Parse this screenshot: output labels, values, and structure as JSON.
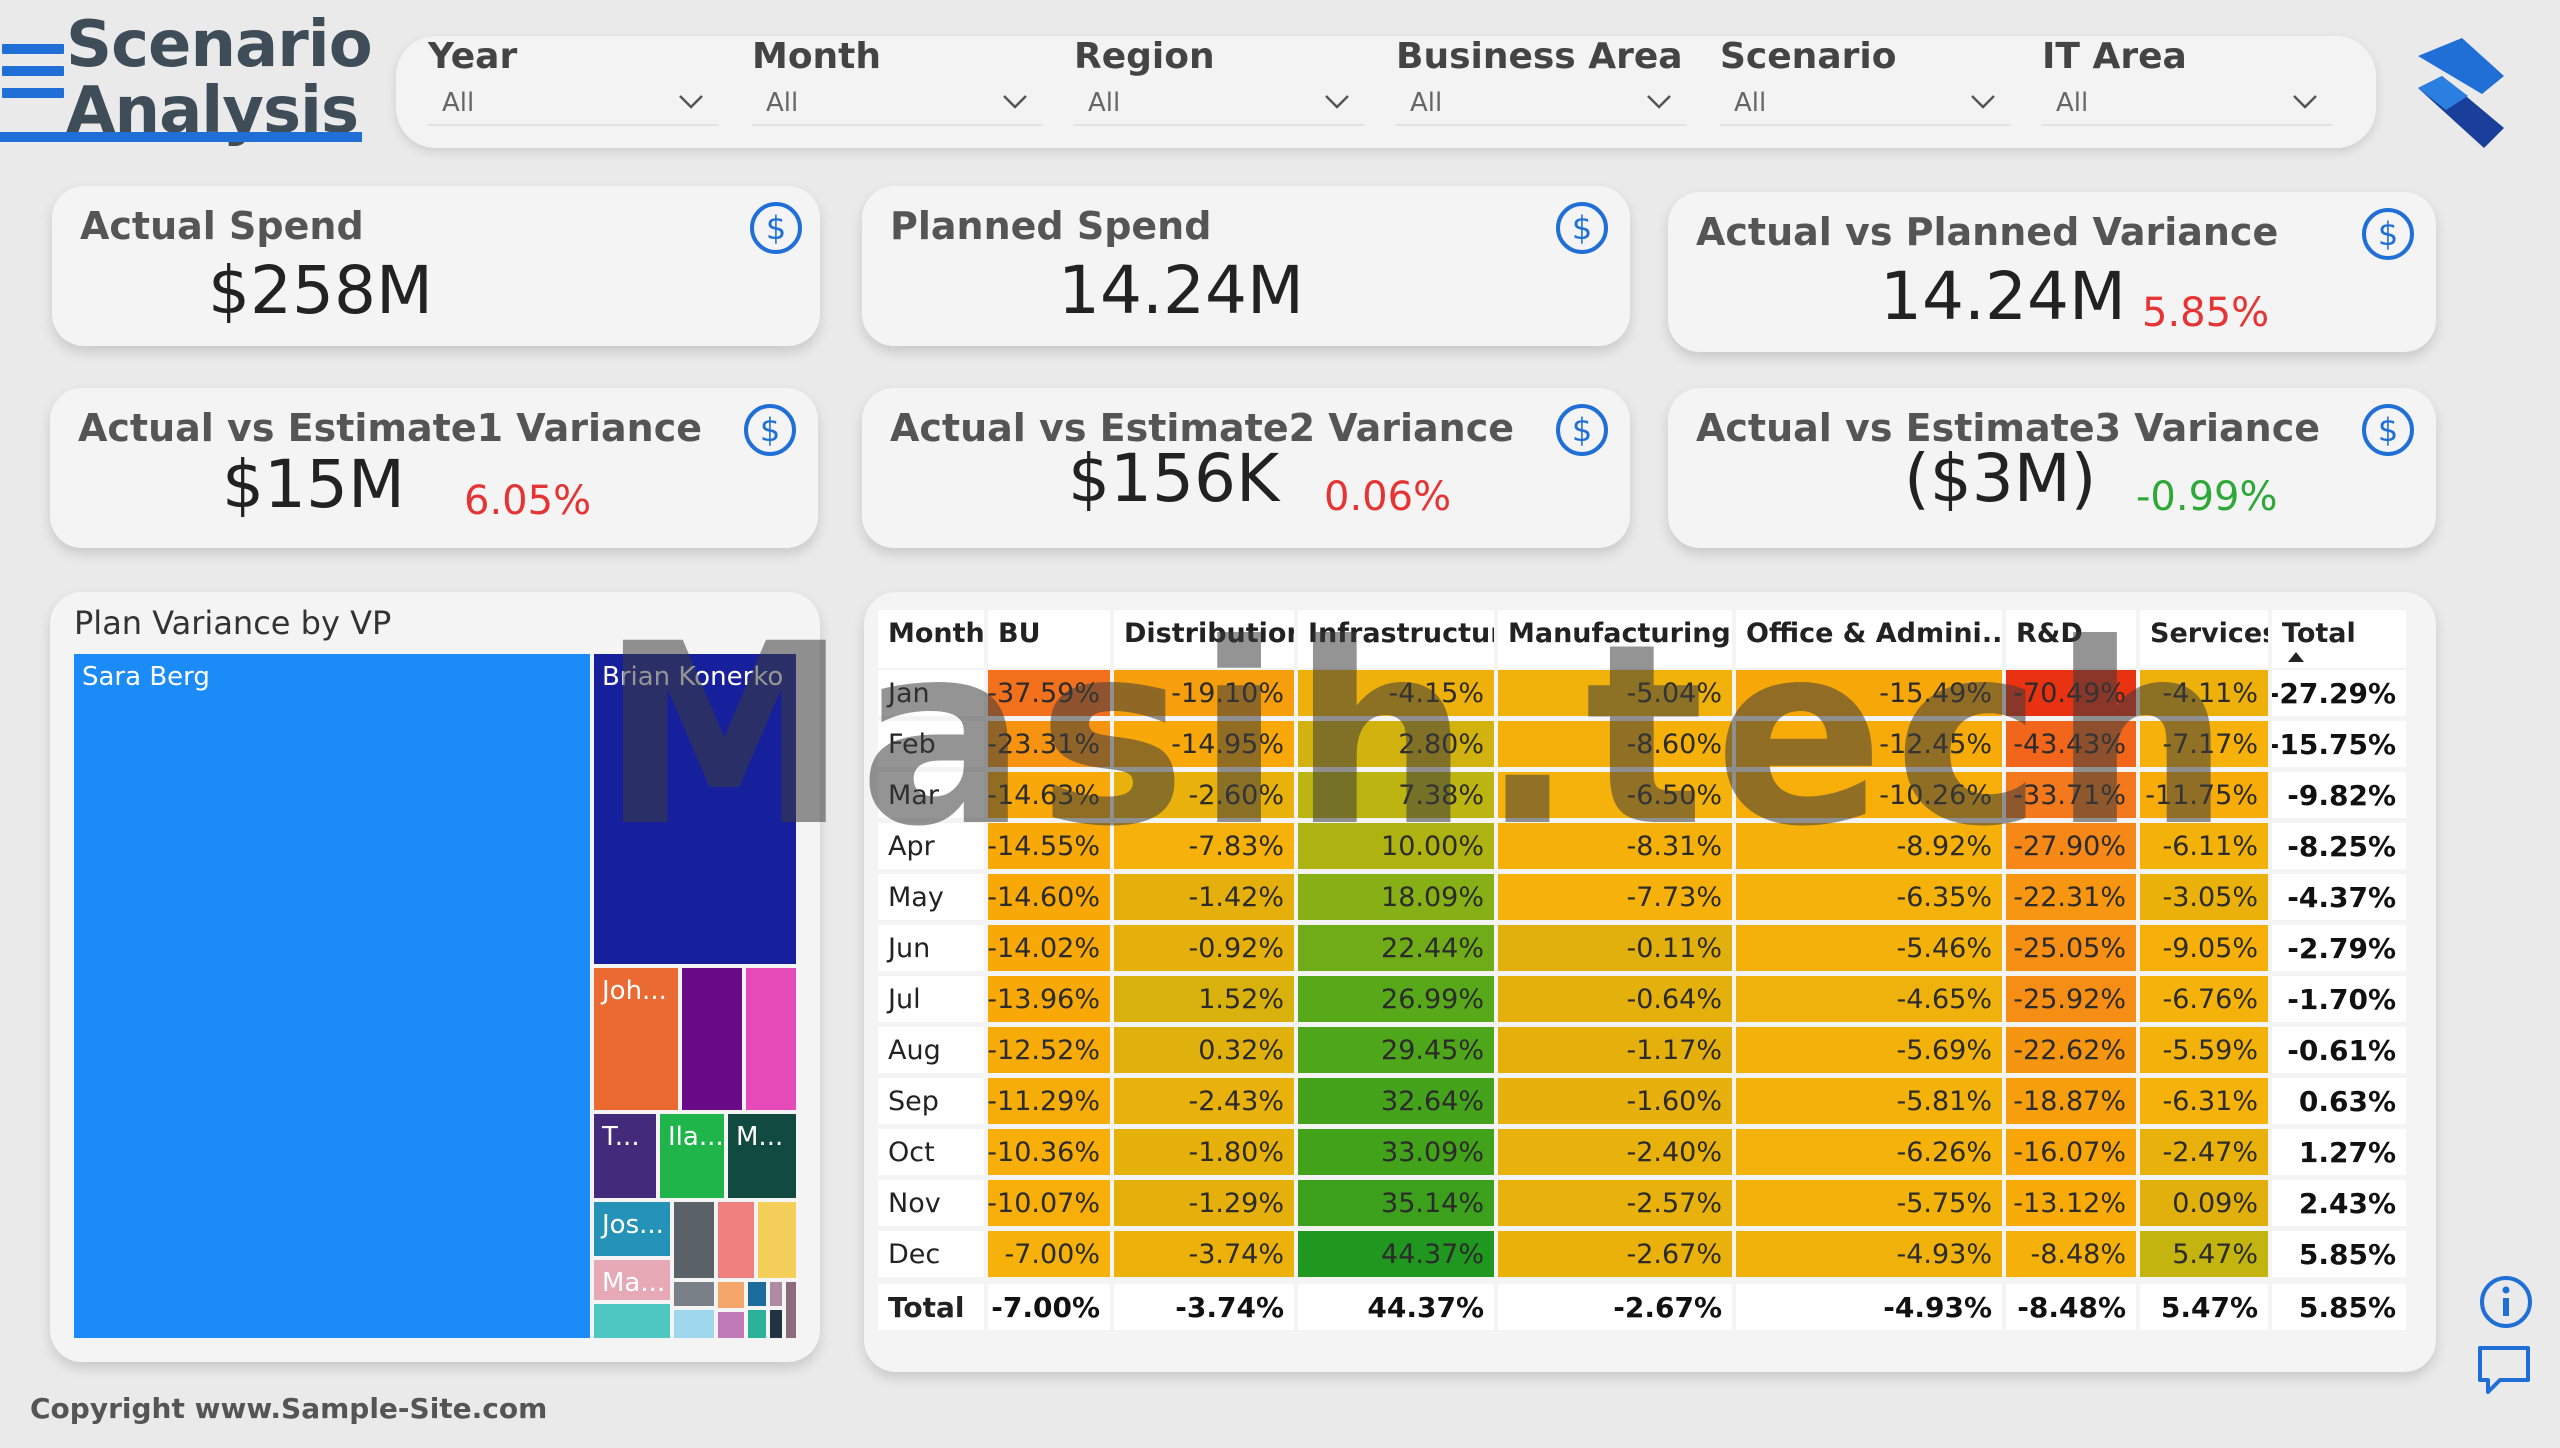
{
  "header": {
    "title_line1": "Scenario",
    "title_line2": "Analysis"
  },
  "filters": [
    {
      "label": "Year",
      "value": "All"
    },
    {
      "label": "Month",
      "value": "All"
    },
    {
      "label": "Region",
      "value": "All"
    },
    {
      "label": "Business Area",
      "value": "All"
    },
    {
      "label": "Scenario",
      "value": "All"
    },
    {
      "label": "IT Area",
      "value": "All"
    }
  ],
  "kpis": {
    "actual_spend": {
      "title": "Actual Spend",
      "value": "$258M"
    },
    "planned_spend": {
      "title": "Planned Spend",
      "value": "14.24M"
    },
    "plan_variance": {
      "title": "Actual vs Planned Variance",
      "value": "14.24M",
      "pct": "5.85%"
    },
    "est1_variance": {
      "title": "Actual vs Estimate1 Variance",
      "value": "$15M",
      "pct": "6.05%"
    },
    "est2_variance": {
      "title": "Actual vs Estimate2 Variance",
      "value": "$156K",
      "pct": "0.06%"
    },
    "est3_variance": {
      "title": "Actual vs Estimate3 Variance",
      "value": "($3M)",
      "pct": "-0.99%"
    }
  },
  "treemap": {
    "title": "Plan Variance by VP",
    "labels": {
      "sara": "Sara Berg",
      "brian": "Brian Konerko",
      "joh": "Joh...",
      "t": "T...",
      "ila": "Ila...",
      "m": "M...",
      "jos": "Jos...",
      "ma": "Ma..."
    }
  },
  "table": {
    "columns": [
      "Month",
      "BU",
      "Distribution",
      "Infrastructure",
      "Manufacturing",
      "Office & Admini...",
      "R&D",
      "Services",
      "Total"
    ],
    "rows": [
      [
        "Jan",
        "-37.59%",
        "-19.10%",
        "-4.15%",
        "-5.04%",
        "-15.49%",
        "-70.49%",
        "-4.11%",
        "-27.29%"
      ],
      [
        "Feb",
        "-23.31%",
        "-14.95%",
        "2.80%",
        "-8.60%",
        "-12.45%",
        "-43.43%",
        "-7.17%",
        "-15.75%"
      ],
      [
        "Mar",
        "-14.63%",
        "-2.60%",
        "7.38%",
        "-6.50%",
        "-10.26%",
        "-33.71%",
        "-11.75%",
        "-9.82%"
      ],
      [
        "Apr",
        "-14.55%",
        "-7.83%",
        "10.00%",
        "-8.31%",
        "-8.92%",
        "-27.90%",
        "-6.11%",
        "-8.25%"
      ],
      [
        "May",
        "-14.60%",
        "-1.42%",
        "18.09%",
        "-7.73%",
        "-6.35%",
        "-22.31%",
        "-3.05%",
        "-4.37%"
      ],
      [
        "Jun",
        "-14.02%",
        "-0.92%",
        "22.44%",
        "-0.11%",
        "-5.46%",
        "-25.05%",
        "-9.05%",
        "-2.79%"
      ],
      [
        "Jul",
        "-13.96%",
        "1.52%",
        "26.99%",
        "-0.64%",
        "-4.65%",
        "-25.92%",
        "-6.76%",
        "-1.70%"
      ],
      [
        "Aug",
        "-12.52%",
        "0.32%",
        "29.45%",
        "-1.17%",
        "-5.69%",
        "-22.62%",
        "-5.59%",
        "-0.61%"
      ],
      [
        "Sep",
        "-11.29%",
        "-2.43%",
        "32.64%",
        "-1.60%",
        "-5.81%",
        "-18.87%",
        "-6.31%",
        "0.63%"
      ],
      [
        "Oct",
        "-10.36%",
        "-1.80%",
        "33.09%",
        "-2.40%",
        "-6.26%",
        "-16.07%",
        "-2.47%",
        "1.27%"
      ],
      [
        "Nov",
        "-10.07%",
        "-1.29%",
        "35.14%",
        "-2.57%",
        "-5.75%",
        "-13.12%",
        "0.09%",
        "2.43%"
      ],
      [
        "Dec",
        "-7.00%",
        "-3.74%",
        "44.37%",
        "-2.67%",
        "-4.93%",
        "-8.48%",
        "5.47%",
        "5.85%"
      ]
    ],
    "total_row": [
      "Total",
      "-7.00%",
      "-3.74%",
      "44.37%",
      "-2.67%",
      "-4.93%",
      "-8.48%",
      "5.47%",
      "5.85%"
    ]
  },
  "watermark": "Masih.tech",
  "footer": {
    "copyright": "Copyright www.Sample-Site.com"
  },
  "icons": [
    "hamburger-icon",
    "chevron-down-icon",
    "dollar-icon",
    "brand-logo",
    "info-icon",
    "chat-icon"
  ],
  "colors": {
    "accent": "#1f6fd6",
    "negative": "#e63333",
    "positive": "#2fa83a"
  }
}
